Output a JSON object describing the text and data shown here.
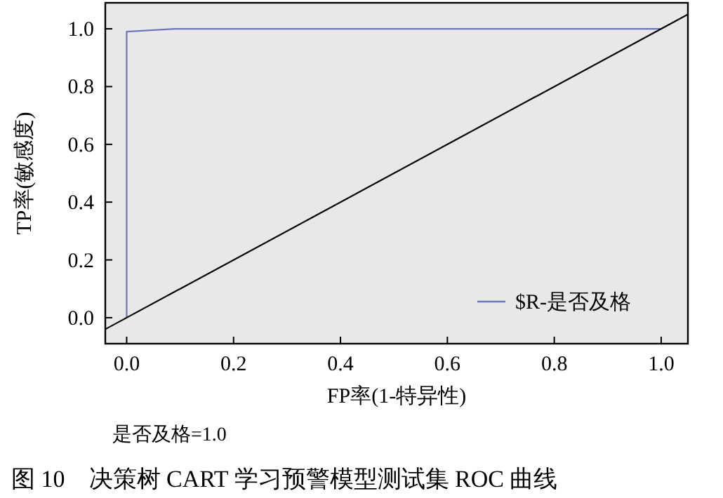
{
  "chart_data": {
    "type": "line",
    "title": "图 10　决策树 CART 学习预警模型测试集 ROC 曲线",
    "xlabel": "FP率(1-特异性)",
    "ylabel": "TP率(敏感度)",
    "annotations": [
      "是否及格=1.0"
    ],
    "xlim": [
      -0.04,
      1.05
    ],
    "ylim": [
      -0.09,
      1.09
    ],
    "xticks": [
      {
        "value": 0,
        "label": "0.0"
      },
      0.2,
      0.4,
      0.6,
      0.8,
      {
        "value": 1,
        "label": "1.0"
      }
    ],
    "yticks": [
      {
        "value": 0,
        "label": "0.0"
      },
      0.2,
      0.4,
      0.6,
      0.8,
      {
        "value": 1,
        "label": "1.0"
      }
    ],
    "grid": false,
    "legend": "bottom right",
    "marker": "none",
    "line_style": "solid",
    "series": [
      {
        "name": "$R-是否及格",
        "color": "#6b77b8",
        "x": [
          0,
          0,
          0.09,
          1
        ],
        "values": [
          0,
          0.99,
          1,
          1
        ]
      },
      {
        "color": "#000000",
        "x": [
          -0.04,
          1.05
        ],
        "values": [
          -0.04,
          1.05
        ]
      }
    ]
  }
}
